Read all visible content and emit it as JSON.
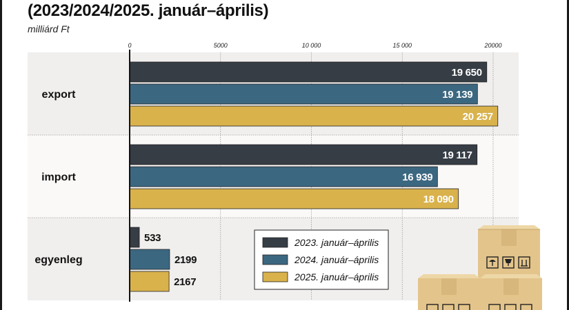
{
  "title": "(2023/2024/2025. január–április)",
  "unit_label": "milliárd Ft",
  "colors": {
    "series_2023": "#363d45",
    "series_2024": "#3c6780",
    "series_2025": "#d9b24c",
    "band_a": "#f1efee",
    "band_b": "#fbf9f8",
    "grid": "#9a9a9a"
  },
  "chart_data": {
    "type": "bar",
    "orientation": "horizontal",
    "categories": [
      "export",
      "import",
      "egyenleg"
    ],
    "series": [
      {
        "name": "2023. január–április",
        "values": [
          19650,
          19117,
          533
        ],
        "labels": [
          "19 650",
          "19 117",
          "533"
        ]
      },
      {
        "name": "2024. január–április",
        "values": [
          19139,
          16939,
          2199
        ],
        "labels": [
          "19 139",
          "16 939",
          "2199"
        ]
      },
      {
        "name": "2025. január–április",
        "values": [
          20257,
          18090,
          2167
        ],
        "labels": [
          "20 257",
          "18 090",
          "2167"
        ]
      }
    ],
    "x_ticks": [
      0,
      5000,
      10000,
      15000,
      20000
    ],
    "x_tick_labels": [
      "0",
      "5000",
      "10 000",
      "15 000",
      "20000"
    ],
    "xlim": [
      0,
      21500
    ],
    "grid": true,
    "legend_position": "bottom-center",
    "decoration": "cardboard-boxes-icon"
  }
}
